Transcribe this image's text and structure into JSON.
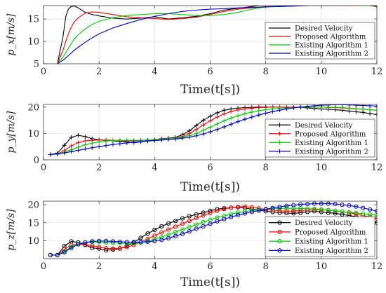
{
  "chart_data": [
    {
      "type": "line",
      "ylabel": "p_x[m/s]",
      "xlabel": "Time(t[s])",
      "xlim": [
        0,
        12
      ],
      "ylim": [
        5,
        18
      ],
      "xticks": [
        "0",
        "2",
        "4",
        "6",
        "8",
        "10",
        "12"
      ],
      "yticks": [
        "5",
        "10",
        "15"
      ],
      "ytick_values": [
        5,
        10,
        15
      ],
      "grid": true,
      "legend_position": "bottom-right",
      "marker": "none",
      "x": [
        0.5,
        0.7,
        0.8,
        0.9,
        1.0,
        1.1,
        1.25,
        1.5,
        1.75,
        2,
        2.5,
        3,
        3.5,
        4,
        4.5,
        5,
        5.5,
        6,
        6.5,
        7,
        7.5,
        8,
        8.5,
        9,
        9.5,
        10,
        10.5,
        11,
        11.5,
        12
      ],
      "series": [
        {
          "name": "Desired Velocity",
          "color": "#000000",
          "values": [
            5,
            11,
            15.5,
            17.3,
            17.8,
            17.9,
            17.5,
            16.5,
            16,
            15.7,
            15.2,
            15,
            15.2,
            15.5,
            15,
            15.3,
            15.6,
            16.2,
            17,
            17.4,
            17.8,
            18.2,
            18,
            18,
            18.1,
            18.2,
            18.1,
            18,
            18.2,
            17.8
          ]
        },
        {
          "name": "Proposed Algorithm",
          "color": "#ff0000",
          "values": [
            5,
            8,
            10,
            11.8,
            13.2,
            14.3,
            15.3,
            16.3,
            16.6,
            16.5,
            16,
            15.5,
            15.3,
            15.1,
            14.9,
            15.1,
            15.4,
            16,
            16.7,
            17.2,
            17.5,
            17.8,
            17.8,
            17.9,
            18,
            18,
            18,
            18,
            18,
            18
          ]
        },
        {
          "name": "Existing Algorithm 1",
          "color": "#00cc00",
          "values": [
            5,
            6.5,
            7.5,
            8.5,
            9.5,
            10.5,
            11.5,
            12.8,
            13.8,
            14.5,
            15.3,
            15.8,
            16,
            16.2,
            16.2,
            16,
            15.8,
            15.8,
            16,
            16.5,
            17.2,
            17.7,
            17.9,
            18,
            18.1,
            18.1,
            18.1,
            18.1,
            18,
            18
          ]
        },
        {
          "name": "Existing Algorithm 2",
          "color": "#0000cc",
          "values": [
            5,
            5.8,
            6.3,
            6.9,
            7.4,
            8,
            8.7,
            9.8,
            10.8,
            11.7,
            13,
            14,
            14.9,
            15.6,
            16.2,
            16.7,
            17,
            17.2,
            17.3,
            17.5,
            17.6,
            17.7,
            17.8,
            17.9,
            18,
            18,
            18.1,
            18.1,
            18.1,
            18.1
          ]
        }
      ]
    },
    {
      "type": "line",
      "ylabel": "p_y[m/s]",
      "xlabel": "Time(t[s])",
      "xlim": [
        0,
        12
      ],
      "ylim": [
        0,
        21
      ],
      "xticks": [
        "0",
        "2",
        "4",
        "6",
        "8",
        "10",
        "12"
      ],
      "yticks": [
        "0",
        "10",
        "20"
      ],
      "ytick_values": [
        0,
        10,
        20
      ],
      "grid": true,
      "legend_position": "bottom-right",
      "marker": "plus",
      "x": [
        0.25,
        0.5,
        0.75,
        1.0,
        1.25,
        1.5,
        1.75,
        2,
        2.25,
        2.5,
        2.75,
        3,
        3.25,
        3.5,
        3.75,
        4,
        4.25,
        4.5,
        4.75,
        5,
        5.25,
        5.5,
        5.75,
        6,
        6.25,
        6.5,
        6.75,
        7,
        7.25,
        7.5,
        7.75,
        8,
        8.25,
        8.5,
        8.75,
        9,
        9.25,
        9.5,
        9.75,
        10,
        10.25,
        10.5,
        10.75,
        11,
        11.25,
        11.5,
        11.75,
        12
      ],
      "series": [
        {
          "name": "Desired Velocity",
          "color": "#000000",
          "values": [
            2,
            2.5,
            5.5,
            8.5,
            9.3,
            8.8,
            8,
            7.6,
            7.3,
            7.2,
            7,
            6.8,
            6.5,
            6.8,
            7.3,
            7.7,
            8,
            8.2,
            8.5,
            9.5,
            11,
            13,
            15,
            16.5,
            17.8,
            18.8,
            19.3,
            19.6,
            19.8,
            19.9,
            20,
            20,
            20,
            20,
            20,
            19.9,
            19.9,
            19.7,
            19.5,
            19.3,
            19.2,
            19,
            18.8,
            18.5,
            18.2,
            18,
            17.5,
            17.2
          ]
        },
        {
          "name": "Proposed Algorithm",
          "color": "#ff0000",
          "values": [
            2,
            2.2,
            3.5,
            5.3,
            6.5,
            7.2,
            7.4,
            7.5,
            7.5,
            7.4,
            7.3,
            7.2,
            7.2,
            7.3,
            7.5,
            7.7,
            7.9,
            8.1,
            8.3,
            8.8,
            10,
            11.5,
            13.2,
            14.8,
            16.2,
            17.4,
            18.3,
            18.9,
            19.3,
            19.6,
            19.8,
            19.9,
            20,
            20,
            20,
            20,
            20,
            20,
            20,
            20,
            19.9,
            19.8,
            19.7,
            19.5,
            19.3,
            19.2,
            19,
            18.8
          ]
        },
        {
          "name": "Existing Algorithm 1",
          "color": "#00cc00",
          "values": [
            2,
            2.2,
            2.8,
            3.8,
            4.8,
            5.7,
            6.3,
            6.8,
            7.1,
            7.3,
            7.4,
            7.4,
            7.4,
            7.4,
            7.5,
            7.6,
            7.8,
            8,
            8.2,
            8.6,
            9.2,
            10,
            11.2,
            12.4,
            13.6,
            14.8,
            15.8,
            16.7,
            17.5,
            18.1,
            18.6,
            19,
            19.3,
            19.5,
            19.7,
            19.8,
            19.9,
            20,
            20,
            20,
            20,
            19.9,
            19.8,
            19.6,
            19.4,
            19.2,
            19,
            18.8
          ]
        },
        {
          "name": "Existing Algorithm 2",
          "color": "#0000cc",
          "values": [
            2,
            2.2,
            2.6,
            3.1,
            3.6,
            4.1,
            4.6,
            5,
            5.4,
            5.8,
            6.1,
            6.4,
            6.7,
            6.9,
            7.1,
            7.3,
            7.5,
            7.7,
            7.9,
            8.2,
            8.6,
            9.1,
            9.8,
            10.6,
            11.5,
            12.5,
            13.5,
            14.5,
            15.4,
            16.2,
            17,
            17.7,
            18.3,
            18.8,
            19.3,
            19.7,
            20,
            20.3,
            20.5,
            20.7,
            20.8,
            20.9,
            20.9,
            20.8,
            20.7,
            20.6,
            20.5,
            20.4
          ]
        }
      ]
    },
    {
      "type": "line",
      "ylabel": "p_z[m/s]",
      "xlabel": "Time(t[s])",
      "xlim": [
        0,
        12
      ],
      "ylim": [
        5,
        21
      ],
      "xticks": [
        "0",
        "2",
        "4",
        "6",
        "8",
        "10",
        "12"
      ],
      "yticks": [
        "10",
        "15",
        "20"
      ],
      "ytick_values": [
        10,
        15,
        20
      ],
      "grid": true,
      "legend_position": "bottom-right",
      "marker": "circle",
      "x": [
        0.25,
        0.5,
        0.75,
        1.0,
        1.25,
        1.5,
        1.75,
        2,
        2.25,
        2.5,
        2.75,
        3,
        3.25,
        3.5,
        3.75,
        4,
        4.25,
        4.5,
        4.75,
        5,
        5.25,
        5.5,
        5.75,
        6,
        6.25,
        6.5,
        6.75,
        7,
        7.25,
        7.5,
        7.75,
        8,
        8.25,
        8.5,
        8.75,
        9,
        9.25,
        9.5,
        9.75,
        10,
        10.25,
        10.5,
        10.75,
        11,
        11.25,
        11.5,
        11.75,
        12
      ],
      "series": [
        {
          "name": "Desired Velocity",
          "color": "#000000",
          "values": [
            6,
            6,
            8.5,
            9.8,
            9.5,
            8.8,
            8,
            7.8,
            7.3,
            7.5,
            7.8,
            8.5,
            9.5,
            10.8,
            12,
            13,
            14,
            14.8,
            15.5,
            16.2,
            16.8,
            17.3,
            17.8,
            18.3,
            18.8,
            19,
            19.2,
            19.3,
            19.1,
            18.8,
            18.5,
            18.2,
            18,
            17.8,
            17.7,
            17.6,
            17.8,
            18,
            18.2,
            18,
            17.8,
            17.6,
            17.3,
            17,
            16.7,
            16.2,
            15.7,
            15
          ]
        },
        {
          "name": "Proposed Algorithm",
          "color": "#ff0000",
          "values": [
            6,
            6,
            7.6,
            8.8,
            9,
            8.9,
            8.6,
            8.2,
            7.9,
            7.8,
            7.9,
            8.2,
            8.8,
            9.6,
            10.5,
            11.4,
            12.3,
            13.1,
            13.9,
            14.7,
            15.5,
            16.3,
            17,
            17.7,
            18.3,
            18.8,
            19.2,
            19.4,
            19.5,
            19.3,
            19,
            18.7,
            18.5,
            18.3,
            18.2,
            18.3,
            18.4,
            18.5,
            18.6,
            18.6,
            18.5,
            18.3,
            18.1,
            17.8,
            17.4,
            17,
            16.6,
            16.2
          ]
        },
        {
          "name": "Existing Algorithm 1",
          "color": "#00cc00",
          "values": [
            6,
            6,
            7,
            8.3,
            9.1,
            9.5,
            9.6,
            9.6,
            9.5,
            9.4,
            9.3,
            9.2,
            9.3,
            9.5,
            9.9,
            10.4,
            11,
            11.7,
            12.4,
            13.1,
            13.8,
            14.5,
            15.2,
            15.8,
            16.4,
            16.9,
            17.4,
            17.8,
            18.1,
            18.4,
            18.6,
            18.8,
            18.9,
            19,
            19,
            19,
            19,
            18.9,
            18.8,
            18.7,
            18.5,
            18.3,
            18.1,
            17.9,
            17.7,
            17.5,
            17.3,
            17.1
          ]
        },
        {
          "name": "Existing Algorithm 2",
          "color": "#0000cc",
          "values": [
            6,
            6,
            6.8,
            8,
            9,
            9.5,
            9.8,
            9.9,
            9.9,
            9.8,
            9.7,
            9.6,
            9.6,
            9.6,
            9.7,
            9.9,
            10.2,
            10.7,
            11.3,
            11.9,
            12.6,
            13.3,
            14,
            14.7,
            15.4,
            16,
            16.6,
            17.1,
            17.6,
            18,
            18.4,
            18.8,
            19.1,
            19.4,
            19.7,
            19.9,
            20.1,
            20.2,
            20.3,
            20.3,
            20.3,
            20.2,
            20,
            19.8,
            19.5,
            19.1,
            18.7,
            18.2
          ]
        }
      ]
    }
  ]
}
